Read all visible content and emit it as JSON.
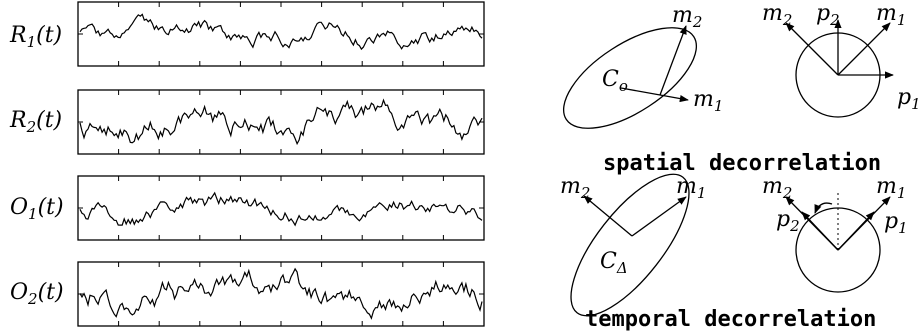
{
  "signals": {
    "r1": {
      "base": "R",
      "sub": "1",
      "arg": "(t)"
    },
    "r2": {
      "base": "R",
      "sub": "2",
      "arg": "(t)"
    },
    "o1": {
      "base": "O",
      "sub": "1",
      "arg": "(t)"
    },
    "o2": {
      "base": "O",
      "sub": "2",
      "arg": "(t)"
    }
  },
  "spatial": {
    "ellipse_label": {
      "base": "C",
      "sub": "o"
    },
    "m1": {
      "base": "m",
      "sub": "1"
    },
    "m2": {
      "base": "m",
      "sub": "2"
    },
    "p1": {
      "base": "p",
      "sub": "1"
    },
    "p2": {
      "base": "p",
      "sub": "2"
    },
    "caption": "spatial decorrelation"
  },
  "temporal": {
    "ellipse_label": {
      "base": "C",
      "sub": "Δ"
    },
    "m1": {
      "base": "m",
      "sub": "1"
    },
    "m2": {
      "base": "m",
      "sub": "2"
    },
    "p1": {
      "base": "p",
      "sub": "1"
    },
    "p2": {
      "base": "p",
      "sub": "2"
    },
    "caption": "temporal decorrelation"
  }
}
